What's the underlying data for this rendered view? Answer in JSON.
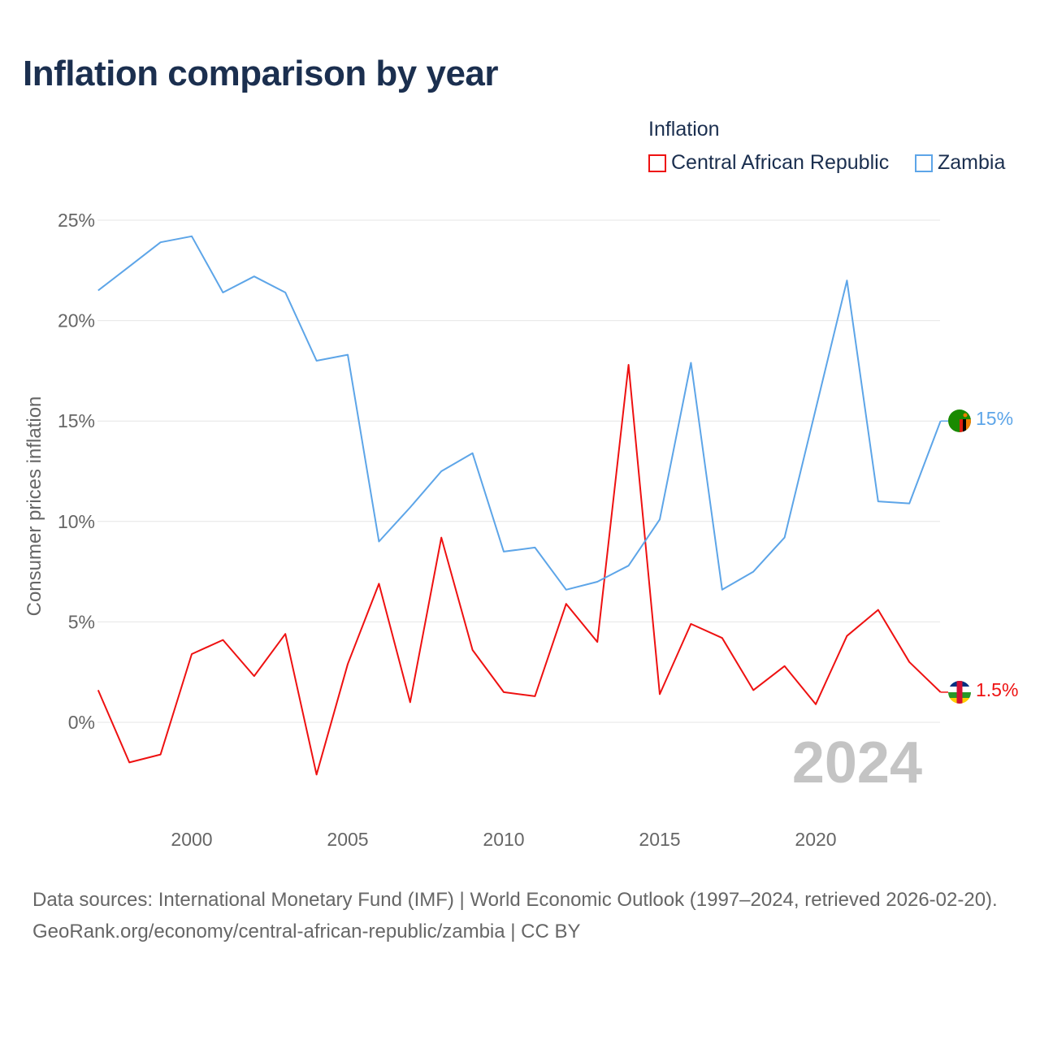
{
  "title": "Inflation comparison by year",
  "legend": {
    "title": "Inflation",
    "items": [
      {
        "label": "Central African Republic",
        "color": "#ee1111"
      },
      {
        "label": "Zambia",
        "color": "#5da5e8"
      }
    ]
  },
  "footer": {
    "line1": "Data sources: International Monetary Fund (IMF) | World Economic Outlook (1997–2024, retrieved 2026-02-20).",
    "line2": "GeoRank.org/economy/central-african-republic/zambia | CC BY"
  },
  "chart_data": {
    "type": "line",
    "ylabel": "Consumer prices inflation",
    "xlabel": "",
    "year_watermark": "2024",
    "yticks": [
      0,
      5,
      10,
      15,
      20,
      25
    ],
    "ytick_labels": [
      "0%",
      "5%",
      "10%",
      "15%",
      "20%",
      "25%"
    ],
    "xticks": [
      2000,
      2005,
      2010,
      2015,
      2020
    ],
    "xtick_labels": [
      "2000",
      "2005",
      "2010",
      "2015",
      "2020"
    ],
    "ylim": [
      -4.9,
      25
    ],
    "xlim": [
      1997,
      2024
    ],
    "grid": true,
    "legend_position": "top-right",
    "x": [
      1997,
      1998,
      1999,
      2000,
      2001,
      2002,
      2003,
      2004,
      2005,
      2006,
      2007,
      2008,
      2009,
      2010,
      2011,
      2012,
      2013,
      2014,
      2015,
      2016,
      2017,
      2018,
      2019,
      2020,
      2021,
      2022,
      2023,
      2024
    ],
    "series": [
      {
        "name": "Central African Republic",
        "color": "#ee1111",
        "end_label": "1.5%",
        "values": [
          1.6,
          -2.0,
          -1.6,
          3.4,
          4.1,
          2.3,
          4.4,
          -2.6,
          2.9,
          6.9,
          1.0,
          9.2,
          3.6,
          1.5,
          1.3,
          5.9,
          4.0,
          17.8,
          1.4,
          4.9,
          4.2,
          1.6,
          2.8,
          0.9,
          4.3,
          5.6,
          3.0,
          1.5
        ]
      },
      {
        "name": "Zambia",
        "color": "#5da5e8",
        "end_label": "15%",
        "values": [
          21.5,
          22.7,
          23.9,
          24.2,
          21.4,
          22.2,
          21.4,
          18.0,
          18.3,
          9.0,
          10.7,
          12.5,
          13.4,
          8.5,
          8.7,
          6.6,
          7.0,
          7.8,
          10.1,
          17.9,
          6.6,
          7.5,
          9.2,
          15.6,
          22.0,
          11.0,
          10.9,
          15.0
        ]
      }
    ]
  }
}
